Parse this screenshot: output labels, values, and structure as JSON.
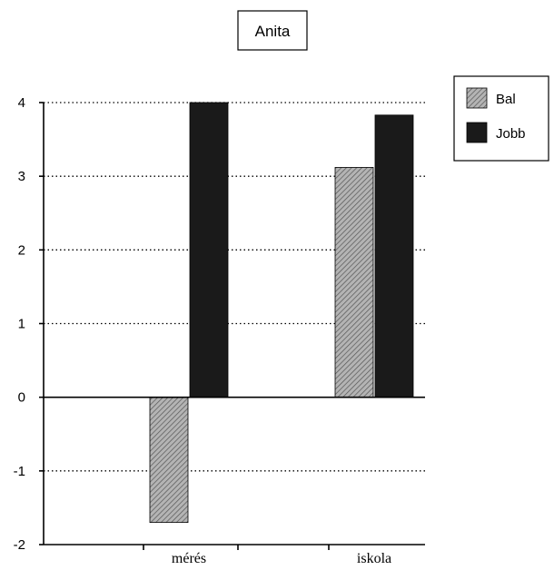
{
  "chart_data": {
    "type": "bar",
    "title": "Anita",
    "categories": [
      "mérés",
      "iskola"
    ],
    "series": [
      {
        "name": "Bal",
        "values": [
          -1.7,
          3.12
        ],
        "color": "#a9a9a9",
        "pattern": "diagonal-hatch"
      },
      {
        "name": "Jobb",
        "values": [
          4.0,
          3.83
        ],
        "color": "#1a1a1a",
        "pattern": "solid"
      }
    ],
    "ylim": [
      -2,
      4
    ],
    "yticks": [
      "-2",
      "-1",
      "0",
      "1",
      "2",
      "3",
      "4"
    ],
    "grid": true,
    "legend_position": "top-right",
    "xlabel": "",
    "ylabel": ""
  }
}
